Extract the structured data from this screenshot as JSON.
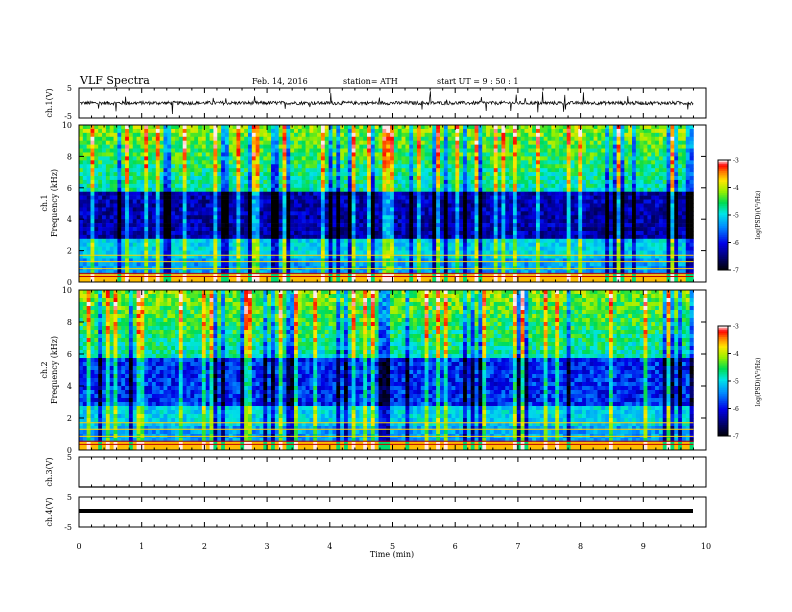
{
  "header": {
    "title": "VLF  Spectra",
    "date": "Feb. 14,  2016",
    "station": "station= ATH",
    "start": "start  UT  =   9  : 50 : 1"
  },
  "chart_data": [
    {
      "type": "line",
      "title": "",
      "ylabel": "ch.1(V)",
      "ylim": [
        -5,
        5
      ],
      "yticks": [
        "5",
        "-5"
      ],
      "x_range": [
        0,
        9.8
      ],
      "description_values": {
        "baseline": 0,
        "noise_amplitude": 1.2
      }
    },
    {
      "type": "heatmap",
      "ylabel_channel": "ch.1",
      "ylabel": "Frequency  (kHz)",
      "ylim": [
        0,
        10
      ],
      "yticks": [
        "0",
        "2",
        "4",
        "6",
        "8",
        "10"
      ],
      "x_range": [
        0,
        9.8
      ],
      "colorbar": {
        "label": "log(PSD)(V²/Hz)",
        "range": [
          -7,
          -3
        ],
        "ticks": [
          "-3",
          "-4",
          "-5",
          "-6",
          "-7"
        ]
      }
    },
    {
      "type": "heatmap",
      "ylabel_channel": "ch.2",
      "ylabel": "Frequency  (kHz)",
      "ylim": [
        0,
        10
      ],
      "yticks": [
        "0",
        "2",
        "4",
        "6",
        "8",
        "10"
      ],
      "x_range": [
        0,
        9.8
      ],
      "colorbar": {
        "label": "log(PSD)(V²/Hz)",
        "range": [
          -7,
          -3
        ],
        "ticks": [
          "-3",
          "-4",
          "-5",
          "-6",
          "-7"
        ]
      }
    },
    {
      "type": "line",
      "ylabel": "ch.3(V)",
      "ylim": [
        -5,
        5
      ],
      "yticks": [
        "5",
        "-5"
      ],
      "x_range": [
        0,
        9.8
      ],
      "values_note": "flat at -5"
    },
    {
      "type": "line",
      "ylabel": "ch.4(V)",
      "ylim": [
        -5,
        5
      ],
      "yticks": [
        "5",
        "-5"
      ],
      "x_range": [
        0,
        9.8
      ],
      "constant_value": -1
    }
  ],
  "xaxis": {
    "label": "Time  (min)",
    "ticks": [
      "0",
      "1",
      "2",
      "3",
      "4",
      "5",
      "6",
      "7",
      "8",
      "9",
      "10"
    ],
    "xlim": [
      0,
      10
    ]
  }
}
